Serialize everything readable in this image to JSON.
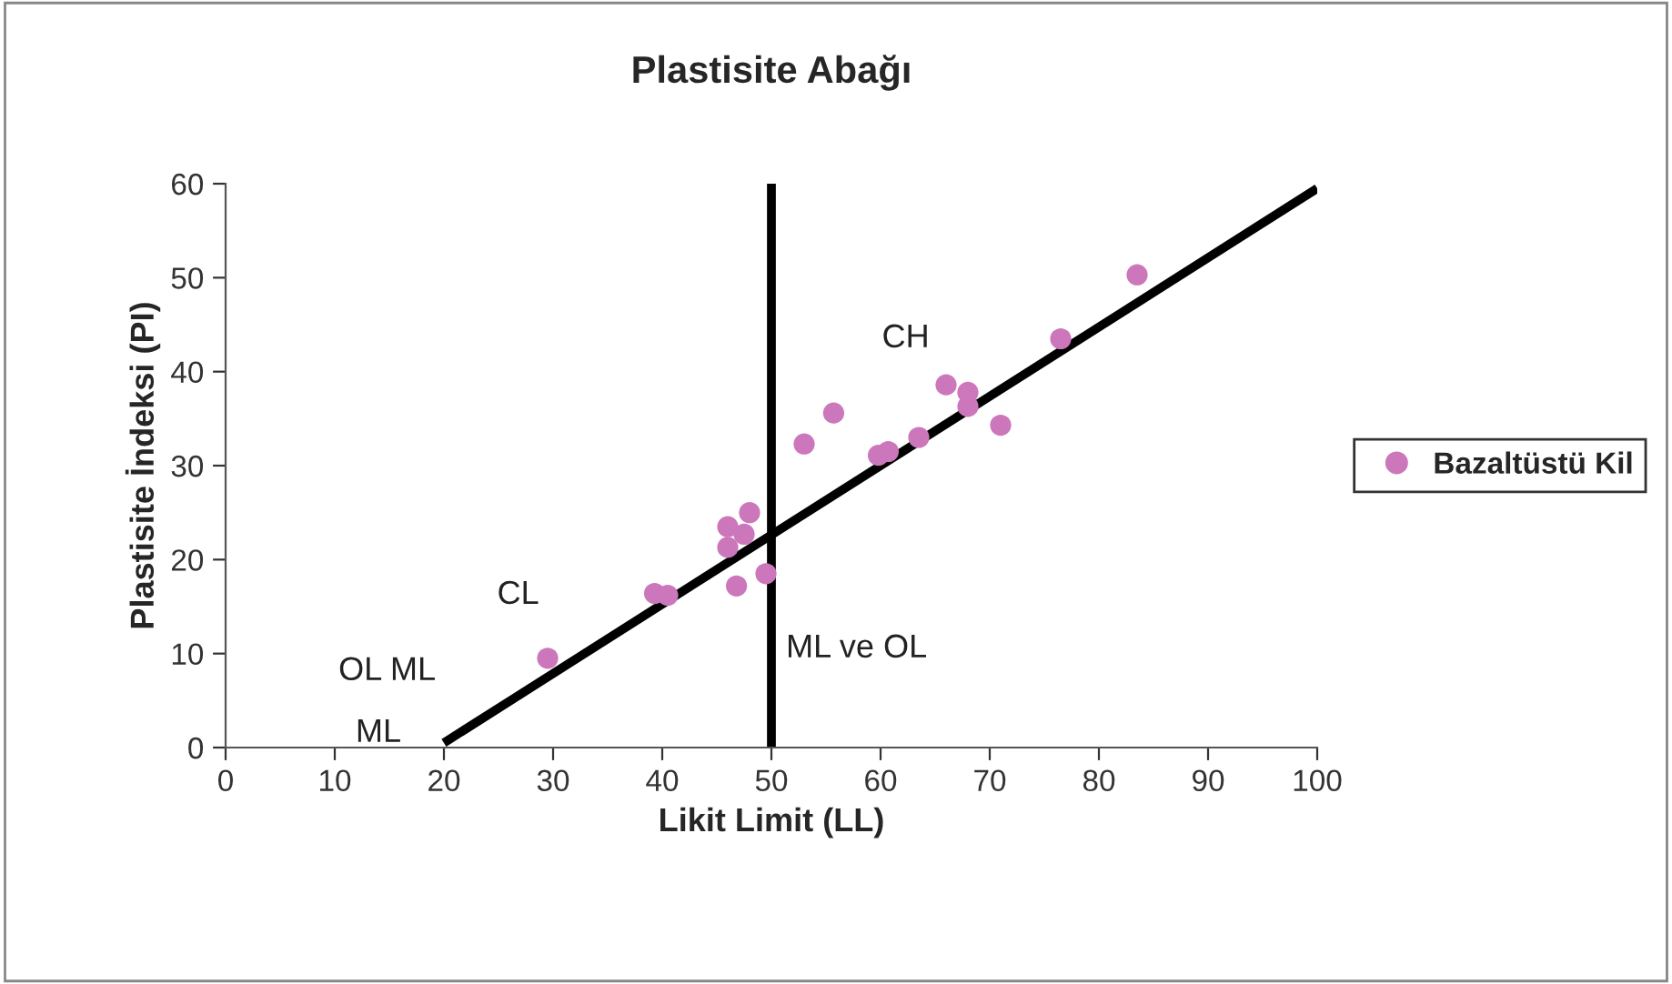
{
  "chart_data": {
    "type": "scatter",
    "title": "Plastisite Abağı",
    "xlabel": "Likit Limit (LL)",
    "ylabel": "Plastisite İndeksi (PI)",
    "xlim": [
      0,
      100
    ],
    "ylim": [
      0,
      60
    ],
    "xticks": [
      0,
      10,
      20,
      30,
      40,
      50,
      60,
      70,
      80,
      90,
      100
    ],
    "yticks": [
      0,
      10,
      20,
      30,
      40,
      50,
      60
    ],
    "grid": false,
    "legend": "right",
    "marker": "circle",
    "series": [
      {
        "name": "Bazaltüstü Kil",
        "color": "#cc77bb",
        "x": [
          29.5,
          39.3,
          40.5,
          46,
          46,
          46.8,
          47.5,
          48,
          49.5,
          53,
          55.7,
          59.8,
          60.7,
          63.5,
          66,
          68,
          68,
          71,
          76.5,
          83.5
        ],
        "values": [
          9.5,
          16.4,
          16.2,
          23.5,
          21.3,
          17.2,
          22.7,
          25,
          18.5,
          32.3,
          35.6,
          31.1,
          31.5,
          33,
          38.6,
          37.8,
          36.3,
          34.3,
          43.5,
          50.3
        ]
      },
      {
        "type": "line",
        "color": "#000000",
        "marker": "none",
        "x": [
          20,
          100
        ],
        "values": [
          0.5,
          59.5
        ]
      }
    ],
    "ref_lines": [
      {
        "axis": "x",
        "value": 50,
        "color": "#000000"
      }
    ],
    "annotations": [
      "CH",
      "CL",
      "OL ML",
      "ML",
      "ML ve OL"
    ]
  }
}
